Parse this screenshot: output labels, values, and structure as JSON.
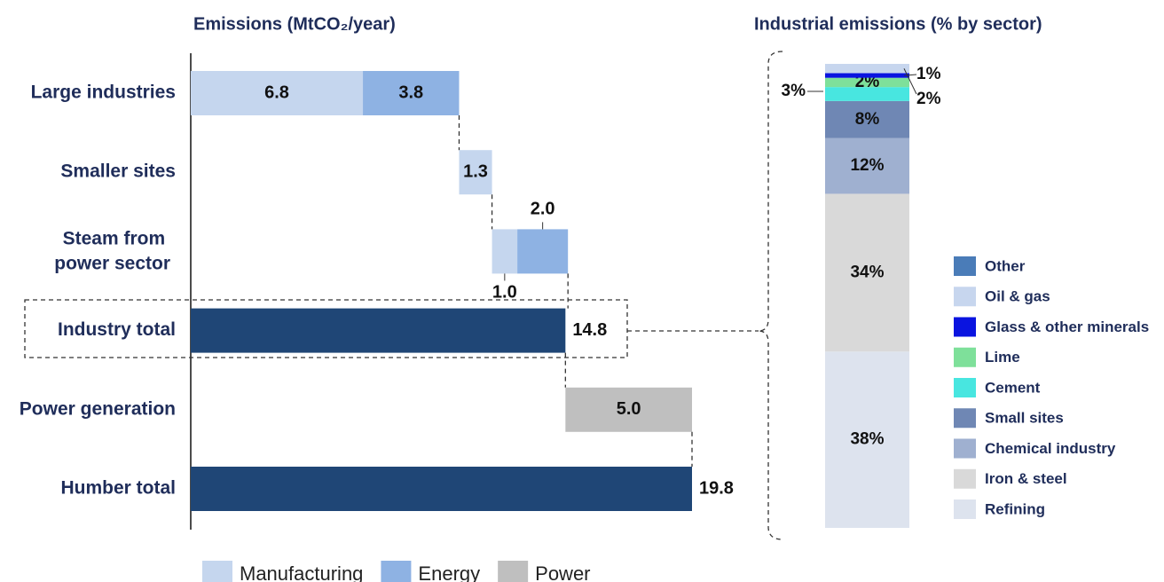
{
  "chart_data": [
    {
      "type": "waterfall",
      "title": "Emissions (MtCO₂/year)",
      "categories": [
        "Large industries",
        "Smaller sites",
        "Steam from power sector",
        "Industry total",
        "Power generation",
        "Humber total"
      ],
      "series": [
        {
          "name": "Manufacturing",
          "color": "#c5d6ee",
          "values": [
            6.8,
            1.3,
            1.0,
            null,
            null,
            null
          ],
          "value_labels": [
            "6.8",
            "1.3",
            "1.0",
            null,
            null,
            null
          ]
        },
        {
          "name": "Energy",
          "color": "#8eb2e3",
          "values": [
            3.8,
            null,
            2.0,
            null,
            null,
            null
          ],
          "value_labels": [
            "3.8",
            null,
            "2.0",
            null,
            null,
            null
          ]
        },
        {
          "name": "Power",
          "color": "#bfbfbf",
          "values": [
            null,
            null,
            null,
            null,
            5.0,
            null
          ],
          "value_labels": [
            null,
            null,
            null,
            null,
            "5.0",
            null
          ]
        }
      ],
      "totals": {
        "color": "#1f4676",
        "values": [
          null,
          null,
          null,
          14.8,
          null,
          19.8
        ]
      },
      "legend": "bottom"
    },
    {
      "type": "stacked_bar",
      "title": "Industrial emissions (% by sector)",
      "series": [
        {
          "name": "Other",
          "color": "#4a7cb8",
          "values": [
            null
          ]
        },
        {
          "name": "Oil & gas",
          "color": "#c7d6ee",
          "values": [
            2
          ],
          "value_labels": [
            "2%"
          ]
        },
        {
          "name": "Glass & other minerals",
          "color": "#0a14e0",
          "values": [
            1
          ],
          "value_labels": [
            "1%"
          ]
        },
        {
          "name": "Lime",
          "color": "#7ee09a",
          "values": [
            2
          ],
          "value_labels": [
            "2%"
          ]
        },
        {
          "name": "Cement",
          "color": "#48e6e0",
          "values": [
            3
          ],
          "value_labels": [
            "3%"
          ]
        },
        {
          "name": "Small sites",
          "color": "#6f87b4",
          "values": [
            8
          ],
          "value_labels": [
            "8%"
          ]
        },
        {
          "name": "Chemical industry",
          "color": "#9fb0d0",
          "values": [
            12
          ],
          "value_labels": [
            "12%"
          ]
        },
        {
          "name": "Iron & steel",
          "color": "#d9d9d9",
          "values": [
            34
          ],
          "value_labels": [
            "34%"
          ]
        },
        {
          "name": "Refining",
          "color": "#dde3ee",
          "values": [
            38
          ],
          "value_labels": [
            "38%"
          ]
        }
      ],
      "legend": "right"
    }
  ]
}
